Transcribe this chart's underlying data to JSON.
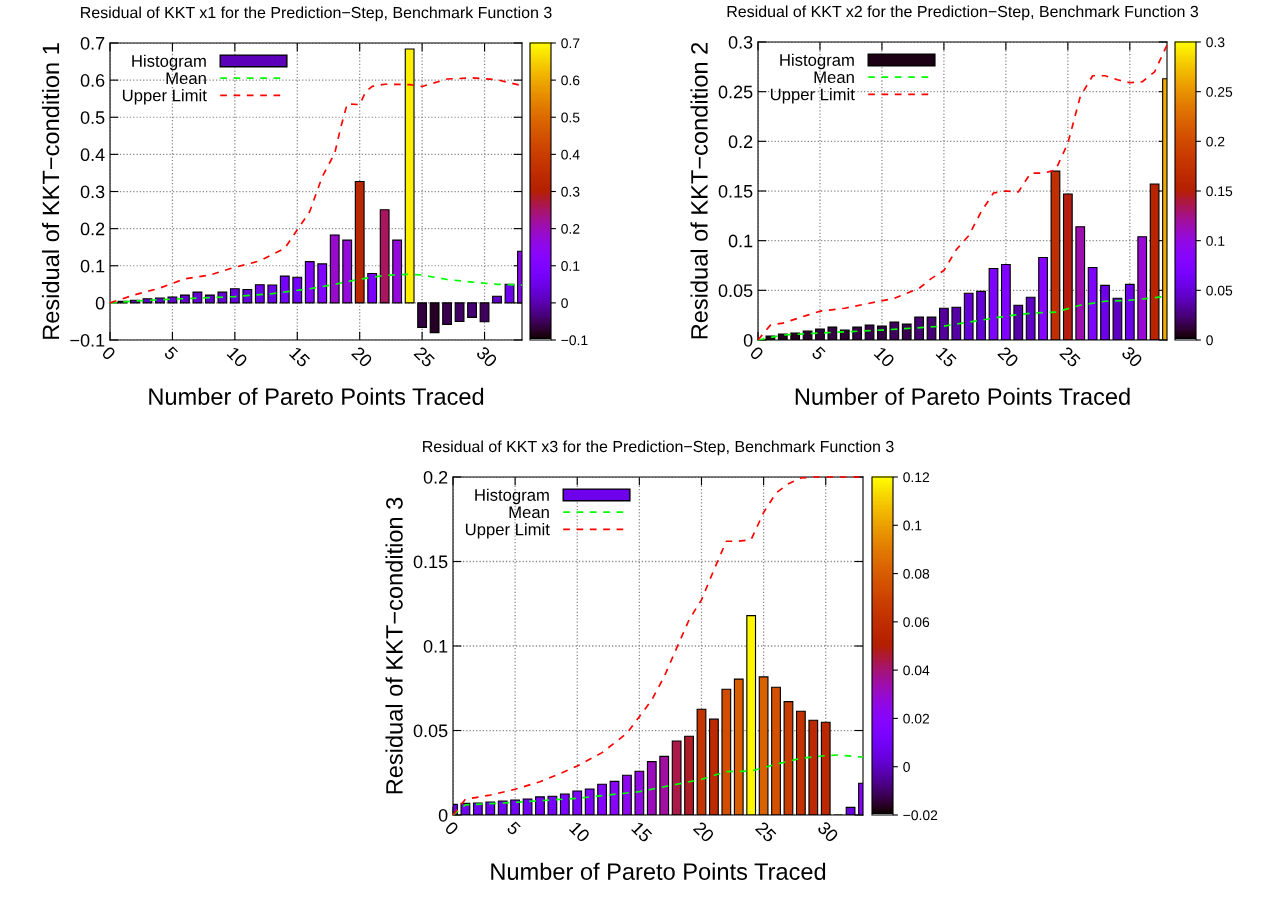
{
  "chart_data": [
    {
      "type": "bar",
      "title": "Residual of KKT x1 for the Prediction−Step, Benchmark Function 3",
      "xlabel": "Number of Pareto Points Traced",
      "ylabel": "Residual of KKT−condition 1",
      "x": [
        1,
        2,
        3,
        4,
        5,
        6,
        7,
        8,
        9,
        10,
        11,
        12,
        13,
        14,
        15,
        16,
        17,
        18,
        19,
        20,
        21,
        22,
        23,
        24,
        25,
        26,
        27,
        28,
        29,
        30,
        31,
        32,
        33
      ],
      "series": [
        {
          "name": "Histogram",
          "colors": [
            "#5c01b9",
            "#5d01be",
            "#5e01c2",
            "#6001c6",
            "#6101ca",
            "#6201cd",
            "#6601d8",
            "#6201cd",
            "#6601d8",
            "#6a01e1",
            "#6901de",
            "#6d02ea",
            "#6d02ea",
            "#7603f9",
            "#7502f8",
            "#8305fe",
            "#8104ff",
            "#970bcb",
            "#940ada",
            "#ba2700",
            "#7903fb",
            "#a9165f",
            "#940ada",
            "#fcf000",
            "#32003e",
            "#270026",
            "#3a0050",
            "#400062",
            "#460073",
            "#3e005c",
            "#6101ca",
            "#6f02ec",
            "#8b07f3"
          ],
          "values": [
            0.004,
            0.007,
            0.011,
            0.013,
            0.016,
            0.021,
            0.029,
            0.021,
            0.029,
            0.038,
            0.036,
            0.049,
            0.048,
            0.072,
            0.069,
            0.111,
            0.105,
            0.183,
            0.169,
            0.327,
            0.079,
            0.251,
            0.169,
            0.684,
            -0.066,
            -0.08,
            -0.058,
            -0.05,
            -0.039,
            -0.051,
            0.018,
            0.05,
            0.139
          ]
        },
        {
          "name": "Mean",
          "type": "line",
          "color": "#00ff00",
          "line_style": "dashed",
          "x": [
            0,
            2,
            5,
            8,
            10,
            13,
            16,
            18,
            20,
            22,
            24,
            25,
            27,
            29,
            31,
            33
          ],
          "values": [
            0,
            0.005,
            0.01,
            0.014,
            0.017,
            0.025,
            0.038,
            0.05,
            0.064,
            0.074,
            0.077,
            0.075,
            0.063,
            0.056,
            0.05,
            0.048
          ]
        },
        {
          "name": "Upper Limit",
          "type": "line",
          "color": "#ff0000",
          "line_style": "dashed",
          "x": [
            0,
            2,
            4,
            6,
            8,
            10,
            12,
            14,
            15,
            16,
            17,
            18,
            18.5,
            19,
            20,
            20.5,
            21,
            22,
            24,
            25,
            27,
            29,
            31,
            33
          ],
          "values": [
            0,
            0.022,
            0.04,
            0.065,
            0.075,
            0.096,
            0.113,
            0.147,
            0.197,
            0.246,
            0.34,
            0.403,
            0.475,
            0.536,
            0.534,
            0.57,
            0.583,
            0.589,
            0.588,
            0.583,
            0.603,
            0.606,
            0.601,
            0.585
          ]
        }
      ],
      "xlim": [
        0,
        33
      ],
      "xticks": [
        0,
        5,
        10,
        15,
        20,
        25,
        30
      ],
      "ylim": [
        -0.1,
        0.7
      ],
      "yticks": [
        {
          "value": -0.1,
          "label": "−0.1"
        },
        0,
        0.1,
        0.2,
        0.3,
        0.4,
        0.5,
        0.6,
        0.7
      ],
      "clim": [
        -0.1,
        0.7
      ],
      "cticks": [
        {
          "value": -0.1,
          "label": "−0.1"
        },
        0,
        0.1,
        0.2,
        0.3,
        0.4,
        0.5,
        0.6,
        0.7
      ],
      "grid": true,
      "legend": "top left"
    },
    {
      "type": "bar",
      "title": "Residual of KKT x2 for the Prediction−Step, Benchmark Function 3",
      "xlabel": "Number of Pareto Points Traced",
      "ylabel": "Residual of KKT−condition 2",
      "x": [
        1,
        2,
        3,
        4,
        5,
        6,
        7,
        8,
        9,
        10,
        11,
        12,
        13,
        14,
        15,
        16,
        17,
        18,
        19,
        20,
        21,
        22,
        23,
        24,
        25,
        26,
        27,
        28,
        29,
        30,
        31,
        32,
        33
      ],
      "series": [
        {
          "name": "Histogram",
          "colors": [
            "#1c0013",
            "#24001f",
            "#24001f",
            "#2a002c",
            "#300038",
            "#350044",
            "#2d0032",
            "#350044",
            "#37004a",
            "#350044",
            "#3e005c",
            "#3a0050",
            "#460073",
            "#460073",
            "#53009d",
            "#5400a2",
            "#6501d5",
            "#6601d8",
            "#7d03fe",
            "#8004ff",
            "#5600a7",
            "#6001c6",
            "#8605fc",
            "#c02f00",
            "#b31e10",
            "#9d0eae",
            "#7e04ff",
            "#6c01e7",
            "#5e01c2",
            "#6d02ea",
            "#960ad3",
            "#b82400",
            "#efad00"
          ],
          "values": [
            0.004,
            0.006,
            0.007,
            0.009,
            0.011,
            0.013,
            0.01,
            0.013,
            0.015,
            0.014,
            0.018,
            0.016,
            0.023,
            0.023,
            0.032,
            0.033,
            0.047,
            0.049,
            0.072,
            0.076,
            0.035,
            0.043,
            0.083,
            0.17,
            0.147,
            0.114,
            0.073,
            0.055,
            0.042,
            0.056,
            0.104,
            0.157,
            0.263
          ]
        },
        {
          "name": "Mean",
          "type": "line",
          "color": "#00ff00",
          "line_style": "dashed",
          "x": [
            0,
            2,
            5,
            10,
            15,
            20,
            22,
            24,
            26,
            28,
            30,
            33
          ],
          "values": [
            0,
            0.005,
            0.007,
            0.01,
            0.014,
            0.024,
            0.027,
            0.028,
            0.035,
            0.039,
            0.04,
            0.044
          ]
        },
        {
          "name": "Upper Limit",
          "type": "line",
          "color": "#ff0000",
          "line_style": "dashed",
          "x": [
            0,
            1,
            2,
            4,
            5,
            7,
            9,
            11,
            13,
            14,
            15,
            16,
            17,
            18,
            19,
            20,
            21,
            22,
            23,
            24,
            25,
            26,
            27,
            28,
            29,
            30,
            31,
            32,
            33
          ],
          "values": [
            0,
            0.015,
            0.017,
            0.025,
            0.029,
            0.032,
            0.037,
            0.042,
            0.052,
            0.062,
            0.07,
            0.091,
            0.105,
            0.129,
            0.148,
            0.15,
            0.149,
            0.168,
            0.168,
            0.171,
            0.198,
            0.245,
            0.266,
            0.266,
            0.262,
            0.259,
            0.26,
            0.27,
            0.297
          ]
        }
      ],
      "xlim": [
        0,
        33
      ],
      "xticks": [
        0,
        5,
        10,
        15,
        20,
        25,
        30
      ],
      "ylim": [
        0,
        0.3
      ],
      "yticks": [
        0,
        0.05,
        0.1,
        0.15,
        0.2,
        0.25,
        0.3
      ],
      "clim": [
        0,
        0.3
      ],
      "cticks": [
        0,
        0.05,
        0.1,
        0.15,
        0.2,
        0.25,
        0.3
      ],
      "grid": true,
      "legend": "top left"
    },
    {
      "type": "bar",
      "title": "Residual of KKT x3 for the Prediction−Step, Benchmark Function 3",
      "xlabel": "Number of Pareto Points Traced",
      "ylabel": "Residual of KKT−condition 3",
      "x": [
        0,
        1,
        2,
        3,
        4,
        5,
        6,
        7,
        8,
        9,
        10,
        11,
        12,
        13,
        14,
        15,
        16,
        17,
        18,
        19,
        20,
        21,
        22,
        23,
        24,
        25,
        26,
        27,
        28,
        29,
        30,
        31,
        32,
        33
      ],
      "series": [
        {
          "name": "Histogram",
          "colors": [
            "#6f02ec",
            "#7002ee",
            "#7002ee",
            "#7102f1",
            "#7202f3",
            "#7302f4",
            "#7402f6",
            "#7703fa",
            "#7703fa",
            "#7b03fd",
            "#7e04ff",
            "#8004ff",
            "#8505fd",
            "#8706fa",
            "#8e08ed",
            "#9109e3",
            "#9b0dbb",
            "#a00fa0",
            "#ac1847",
            "#b01b29",
            "#c43500",
            "#bd2a00",
            "#d14e00",
            "#d85e00",
            "#fdf600",
            "#d96100",
            "#d35100",
            "#c93e00",
            "#c23200",
            "#bc2900",
            "#ba2700",
            "#6001c6",
            "#6a01e1",
            "#8605fc"
          ],
          "values": [
            0.0063,
            0.0069,
            0.0071,
            0.0077,
            0.0083,
            0.0089,
            0.0095,
            0.0107,
            0.0111,
            0.0124,
            0.0142,
            0.0154,
            0.0182,
            0.0199,
            0.0235,
            0.0259,
            0.0316,
            0.0347,
            0.0438,
            0.0466,
            0.0626,
            0.0567,
            0.0744,
            0.0804,
            0.118,
            0.0817,
            0.0756,
            0.0671,
            0.0614,
            0.0561,
            0.0549,
            0,
            0.0045,
            0.0188
          ]
        },
        {
          "name": "Mean",
          "type": "line",
          "color": "#00ff00",
          "line_style": "dashed",
          "x": [
            0,
            1,
            5,
            10,
            15,
            20,
            22,
            24,
            26,
            28,
            30,
            31,
            33
          ],
          "values": [
            0,
            0.006,
            0.0075,
            0.0099,
            0.0138,
            0.0211,
            0.0257,
            0.026,
            0.03,
            0.0336,
            0.0351,
            0.0355,
            0.0342
          ]
        },
        {
          "name": "Upper Limit",
          "type": "line",
          "color": "#ff0000",
          "line_style": "dashed",
          "x": [
            0,
            1,
            3,
            5,
            7,
            9,
            10,
            12,
            14,
            15,
            16,
            17,
            18,
            19,
            20,
            21,
            22,
            23,
            24,
            25,
            26,
            27,
            28,
            29,
            30,
            31,
            32,
            33
          ],
          "values": [
            0,
            0.0093,
            0.0118,
            0.0152,
            0.0197,
            0.0257,
            0.029,
            0.0369,
            0.0484,
            0.0582,
            0.0681,
            0.0819,
            0.0987,
            0.1155,
            0.1273,
            0.145,
            0.162,
            0.162,
            0.163,
            0.179,
            0.1905,
            0.196,
            0.1994,
            0.2,
            0.2,
            0.2,
            0.2,
            0.2
          ]
        }
      ],
      "xlim": [
        0,
        33
      ],
      "xticks": [
        0,
        5,
        10,
        15,
        20,
        25,
        30
      ],
      "ylim": [
        0,
        0.2
      ],
      "yticks": [
        0,
        0.05,
        0.1,
        0.15,
        0.2
      ],
      "clim": [
        -0.02,
        0.12
      ],
      "cticks": [
        {
          "value": -0.02,
          "label": "−0.02"
        },
        0,
        0.02,
        0.04,
        0.06,
        0.08,
        0.1,
        0.12
      ],
      "grid": true,
      "legend": "top left"
    }
  ]
}
